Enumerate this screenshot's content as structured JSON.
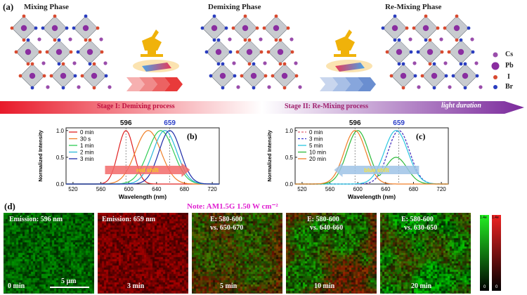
{
  "panel_a": {
    "label": "(a)",
    "phases": [
      "Mixing Phase",
      "Demixing Phase",
      "Re-Mixing Phase"
    ],
    "legend": [
      "Cs",
      "Pb",
      "I",
      "Br"
    ],
    "stage1": "Stage I: Demixing process",
    "stage2": "Stage II: Re-Mixing process",
    "light_duration": "light duration"
  },
  "colors": {
    "pb": "#8a2ea0",
    "cs": "#9a4dab",
    "i": "#d84a30",
    "br": "#2a3dbf",
    "octahedron": "#9aa0a8",
    "lamp": "#f0b20a"
  },
  "panel_b": {
    "label": "(b)",
    "peaks": [
      "596",
      "659"
    ],
    "shift_label": "red shift"
  },
  "panel_c": {
    "label": "(c)",
    "peaks": [
      "596",
      "659"
    ],
    "shift_label": "blue shift"
  },
  "chart_data": [
    {
      "type": "line",
      "panel": "b",
      "xlabel": "Wavelength (nm)",
      "ylabel": "Normalized Intensity",
      "xlim": [
        510,
        730
      ],
      "ylim": [
        0.0,
        1.05
      ],
      "xticks": [
        520,
        560,
        600,
        640,
        680,
        720
      ],
      "yticks": [
        0.0,
        0.5,
        1.0
      ],
      "series": [
        {
          "name": "0 min",
          "color": "#e02020",
          "peak": 596,
          "width": 16,
          "shoulder": 0
        },
        {
          "name": "30 s",
          "color": "#f07e26",
          "peak": 628,
          "width": 26,
          "shoulder": 0
        },
        {
          "name": "1 min",
          "color": "#2ecc55",
          "peak": 646,
          "width": 26,
          "shoulder": 0
        },
        {
          "name": "2 min",
          "color": "#29b8d8",
          "peak": 652,
          "width": 24,
          "shoulder": 0
        },
        {
          "name": "3 min",
          "color": "#1c2aa8",
          "peak": 659,
          "width": 22,
          "shoulder": 0
        }
      ]
    },
    {
      "type": "line",
      "panel": "c",
      "xlabel": "Wavelength (nm)",
      "ylabel": "Normalized Intensity",
      "xlim": [
        510,
        730
      ],
      "ylim": [
        0.0,
        1.05
      ],
      "xticks": [
        520,
        560,
        600,
        640,
        680,
        720
      ],
      "yticks": [
        0.0,
        0.5,
        1.0
      ],
      "series": [
        {
          "name": "0 min",
          "color": "#e06070",
          "peak": 659,
          "width": 22,
          "shoulder": 0,
          "dashed": true
        },
        {
          "name": "3 min",
          "color": "#3b3bd0",
          "peak": 659,
          "width": 22,
          "shoulder": 0,
          "dashed": true
        },
        {
          "name": "5 min",
          "color": "#29c6e0",
          "peak": 655,
          "width": 24,
          "shoulder": 0
        },
        {
          "name": "10 min",
          "color": "#2dbb3a",
          "peak": 600,
          "width": 22,
          "shoulder": 0.5
        },
        {
          "name": "20 min",
          "color": "#f07e26",
          "peak": 596,
          "width": 22,
          "shoulder": 0
        }
      ]
    }
  ],
  "panel_d": {
    "label": "(d)",
    "note": "Note: AM1.5G 1.50 W cm⁻²",
    "scale_bar": "5 μm",
    "maps": [
      {
        "title": "Emission: 596 nm",
        "sub": "",
        "time": "0 min"
      },
      {
        "title": "Emission: 659 nm",
        "sub": "",
        "time": "3 min"
      },
      {
        "title": "E: 580-600",
        "sub": "vs. 650-670",
        "time": "5 min"
      },
      {
        "title": "E: 580-600",
        "sub": "vs. 640-660",
        "time": "10 min"
      },
      {
        "title": "E: 580-600",
        "sub": "vs. 630-650",
        "time": "20 min"
      }
    ],
    "colorbar": {
      "green_max": "1.4e",
      "red_max": "1.4e",
      "min": "0"
    }
  }
}
